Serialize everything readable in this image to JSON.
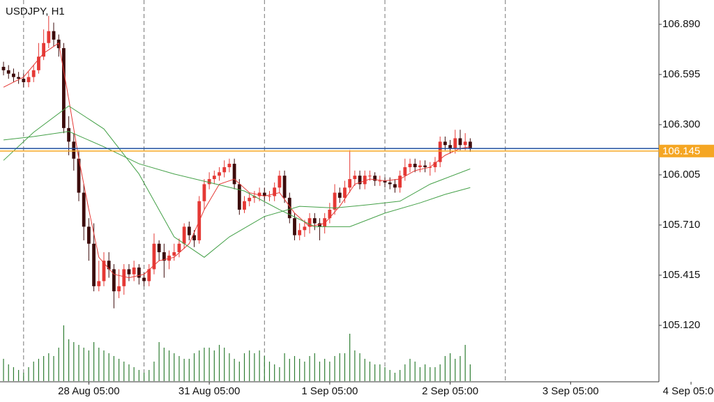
{
  "chart_data": {
    "type": "candlestick",
    "title": "USDJPY, H1",
    "xlim": [
      -0.7,
      130.6
    ],
    "ylim": [
      104.788,
      107.033
    ],
    "xticks": [
      {
        "value": 17,
        "label": "28 Aug 05:00"
      },
      {
        "value": 41,
        "label": "31 Aug 05:00"
      },
      {
        "value": 65,
        "label": "1 Sep 05:00"
      },
      {
        "value": 89,
        "label": "2 Sep 05:00"
      },
      {
        "value": 113,
        "label": "3 Sep 05:00"
      },
      {
        "value": 137,
        "label": "4 Sep 05:00"
      }
    ],
    "yticks": [
      {
        "value": 106.89,
        "label": "106.890"
      },
      106.595,
      {
        "value": 106.3,
        "label": "106.300"
      },
      106.005,
      {
        "value": 105.71,
        "label": "105.710"
      },
      105.415,
      {
        "value": 105.12,
        "label": "105.120"
      }
    ],
    "separators": [
      4,
      28,
      52,
      76,
      100
    ],
    "up_color": "#e53935",
    "down_color": "#3d0c0c",
    "open": [
      106.64,
      106.62,
      106.6,
      106.58,
      106.57,
      106.55,
      106.58,
      106.62,
      106.7,
      106.78,
      106.85,
      106.8,
      106.75,
      106.28,
      106.2,
      106.1,
      105.9,
      105.7,
      105.6,
      105.35,
      105.38,
      105.5,
      105.45,
      105.32,
      105.35,
      105.45,
      105.42,
      105.46,
      105.4,
      105.38,
      105.45,
      105.6,
      105.55,
      105.5,
      105.53,
      105.55,
      105.6,
      105.7,
      105.65,
      105.62,
      105.85,
      105.95,
      105.98,
      106.0,
      106.02,
      106.05,
      106.07,
      105.95,
      105.8,
      105.85,
      105.87,
      105.88,
      105.9,
      105.88,
      105.88,
      105.93,
      106.0,
      105.87,
      105.75,
      105.65,
      105.68,
      105.7,
      105.75,
      105.72,
      105.7,
      105.75,
      105.8,
      105.9,
      105.87,
      105.93,
      105.98,
      106.0,
      105.95,
      106.0,
      106.0,
      105.97,
      105.97,
      105.96,
      105.95,
      105.93,
      106.0,
      106.05,
      106.07,
      106.05,
      106.06,
      106.05,
      106.05,
      106.08,
      106.2,
      106.18,
      106.16,
      106.22,
      106.18,
      106.2
    ],
    "high": [
      106.67,
      106.65,
      106.63,
      106.61,
      106.6,
      106.61,
      106.65,
      106.78,
      106.86,
      106.94,
      106.9,
      106.83,
      106.78,
      106.35,
      106.25,
      106.15,
      105.95,
      105.75,
      105.72,
      105.5,
      105.55,
      105.55,
      105.48,
      105.45,
      105.48,
      105.48,
      105.5,
      105.48,
      105.43,
      105.48,
      105.66,
      105.62,
      105.6,
      105.56,
      105.6,
      105.63,
      105.72,
      105.73,
      105.68,
      105.88,
      105.98,
      106.02,
      106.03,
      106.05,
      106.09,
      106.1,
      106.1,
      105.98,
      105.88,
      105.9,
      105.91,
      105.93,
      105.93,
      105.91,
      105.96,
      106.03,
      106.03,
      105.9,
      105.78,
      105.72,
      105.74,
      105.78,
      105.78,
      105.75,
      105.78,
      105.84,
      105.95,
      105.93,
      105.97,
      106.15,
      106.03,
      106.03,
      106.03,
      106.03,
      106.02,
      106.0,
      105.99,
      105.99,
      105.98,
      106.03,
      106.1,
      106.1,
      106.1,
      106.09,
      106.09,
      106.08,
      106.11,
      106.23,
      106.23,
      106.21,
      106.27,
      106.27,
      106.25,
      106.22
    ],
    "low": [
      106.59,
      106.57,
      106.55,
      106.54,
      106.52,
      106.52,
      106.55,
      106.6,
      106.68,
      106.75,
      106.76,
      106.7,
      106.25,
      106.12,
      106.03,
      105.85,
      105.62,
      105.5,
      105.32,
      105.32,
      105.35,
      105.4,
      105.22,
      105.28,
      105.3,
      105.38,
      105.38,
      105.36,
      105.35,
      105.35,
      105.42,
      105.5,
      105.4,
      105.45,
      105.5,
      105.52,
      105.57,
      105.62,
      105.58,
      105.6,
      105.8,
      105.92,
      105.95,
      105.97,
      105.99,
      106.02,
      105.92,
      105.77,
      105.78,
      105.82,
      105.84,
      105.85,
      105.85,
      105.85,
      105.85,
      105.9,
      105.84,
      105.72,
      105.62,
      105.62,
      105.64,
      105.66,
      105.68,
      105.62,
      105.66,
      105.72,
      105.77,
      105.84,
      105.84,
      105.9,
      105.94,
      105.92,
      105.92,
      105.97,
      105.94,
      105.94,
      105.93,
      105.92,
      105.9,
      105.9,
      105.97,
      106.02,
      106.02,
      106.02,
      106.02,
      106.0,
      106.02,
      106.05,
      106.15,
      106.13,
      106.13,
      106.15,
      106.15,
      106.14
    ],
    "close": [
      106.62,
      106.6,
      106.58,
      106.57,
      106.55,
      106.58,
      106.62,
      106.7,
      106.78,
      106.85,
      106.8,
      106.75,
      106.28,
      106.2,
      106.1,
      105.9,
      105.7,
      105.6,
      105.35,
      105.38,
      105.5,
      105.45,
      105.32,
      105.35,
      105.45,
      105.42,
      105.46,
      105.4,
      105.38,
      105.45,
      105.6,
      105.55,
      105.5,
      105.53,
      105.55,
      105.6,
      105.7,
      105.65,
      105.62,
      105.85,
      105.95,
      105.98,
      106.0,
      106.02,
      106.05,
      106.07,
      105.95,
      105.8,
      105.85,
      105.87,
      105.88,
      105.9,
      105.88,
      105.88,
      105.93,
      106.0,
      105.87,
      105.75,
      105.65,
      105.68,
      105.7,
      105.75,
      105.72,
      105.7,
      105.75,
      105.8,
      105.9,
      105.87,
      105.93,
      105.98,
      106.0,
      105.95,
      106.0,
      106.0,
      105.97,
      105.97,
      105.96,
      105.95,
      105.93,
      106.0,
      106.05,
      106.07,
      106.05,
      106.06,
      106.05,
      106.05,
      106.08,
      106.2,
      106.18,
      106.16,
      106.22,
      106.18,
      106.2,
      106.16
    ],
    "volume": [
      40,
      30,
      25,
      20,
      15,
      25,
      35,
      40,
      45,
      50,
      45,
      60,
      100,
      75,
      70,
      65,
      60,
      55,
      70,
      60,
      55,
      50,
      45,
      40,
      35,
      30,
      25,
      20,
      15,
      20,
      35,
      70,
      60,
      55,
      50,
      45,
      40,
      40,
      50,
      55,
      60,
      60,
      55,
      65,
      60,
      50,
      40,
      35,
      50,
      55,
      50,
      55,
      45,
      35,
      30,
      25,
      50,
      40,
      45,
      40,
      35,
      45,
      50,
      35,
      40,
      35,
      45,
      50,
      50,
      85,
      55,
      50,
      40,
      35,
      30,
      30,
      25,
      20,
      15,
      20,
      30,
      40,
      35,
      25,
      30,
      25,
      25,
      30,
      45,
      50,
      40,
      45,
      65,
      30
    ],
    "volume_lim": [
      0,
      100
    ],
    "volume_color": "#2e7d32",
    "series": [
      {
        "color": "#e53935",
        "x": [
          0,
          4,
          8,
          11,
          13,
          15,
          17,
          19,
          22,
          25,
          28,
          31,
          34,
          37,
          40,
          43,
          46,
          49,
          52,
          55,
          58,
          61,
          64,
          67,
          70,
          73,
          76,
          79,
          82,
          85,
          88,
          91,
          93
        ],
        "values": [
          106.52,
          106.58,
          106.72,
          106.78,
          106.45,
          106.1,
          105.8,
          105.52,
          105.42,
          105.4,
          105.42,
          105.5,
          105.52,
          105.6,
          105.8,
          105.95,
          105.98,
          105.9,
          105.88,
          105.9,
          105.78,
          105.7,
          105.72,
          105.82,
          105.95,
          105.98,
          105.97,
          105.98,
          106.03,
          106.05,
          106.12,
          106.16,
          106.17
        ]
      },
      {
        "color": "#43a047",
        "x": [
          0,
          6,
          13,
          20,
          27,
          34,
          40,
          45,
          52,
          59,
          66,
          73,
          79,
          85,
          93
        ],
        "values": [
          106.09,
          106.255,
          106.41,
          106.275,
          106.01,
          105.64,
          105.52,
          105.64,
          105.76,
          105.82,
          105.81,
          105.83,
          105.85,
          105.95,
          106.04
        ]
      },
      {
        "color": "#43a047",
        "x": [
          0,
          6,
          13,
          20,
          27,
          34,
          41,
          48,
          55,
          62,
          69,
          76,
          83,
          88,
          93
        ],
        "values": [
          106.21,
          106.23,
          106.26,
          106.17,
          106.07,
          106.01,
          105.96,
          105.91,
          105.8,
          105.7,
          105.7,
          105.78,
          105.84,
          105.89,
          105.93
        ]
      }
    ],
    "ask_line": 106.16,
    "ask_color": "#1e4fa3",
    "current_price": 106.145,
    "current_color": "#f5a623"
  }
}
